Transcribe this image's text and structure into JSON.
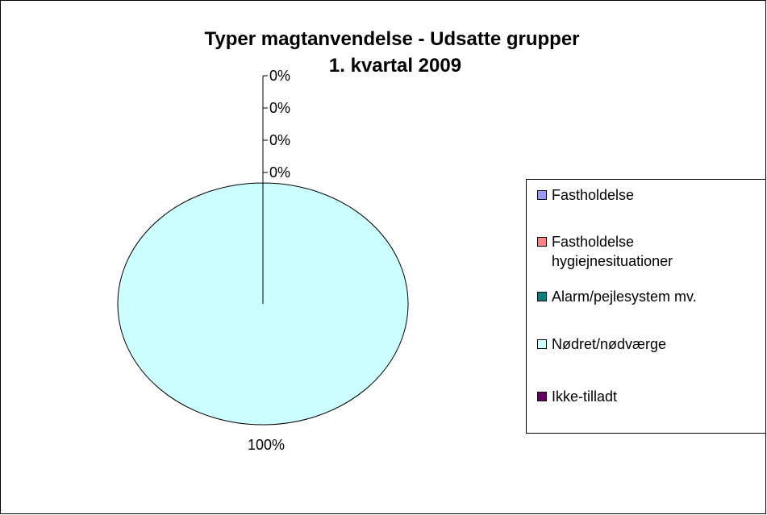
{
  "chart_data": {
    "type": "pie",
    "title": "Typer magtanvendelse - Udsatte grupper",
    "subtitle": "1. kvartal 2009",
    "categories": [
      "Fastholdelse",
      "Fastholdelse hygiejnesituationer",
      "Alarm/pejlesystem mv.",
      "Nødret/nødværge",
      "Ikke-tilladt"
    ],
    "values": [
      0,
      0,
      0,
      100,
      0
    ],
    "value_labels": [
      "0%",
      "0%",
      "0%",
      "100%",
      "0%"
    ],
    "colors": [
      "#9999ff",
      "#ff8080",
      "#008080",
      "#ccffff",
      "#660066"
    ],
    "legend": "right"
  }
}
